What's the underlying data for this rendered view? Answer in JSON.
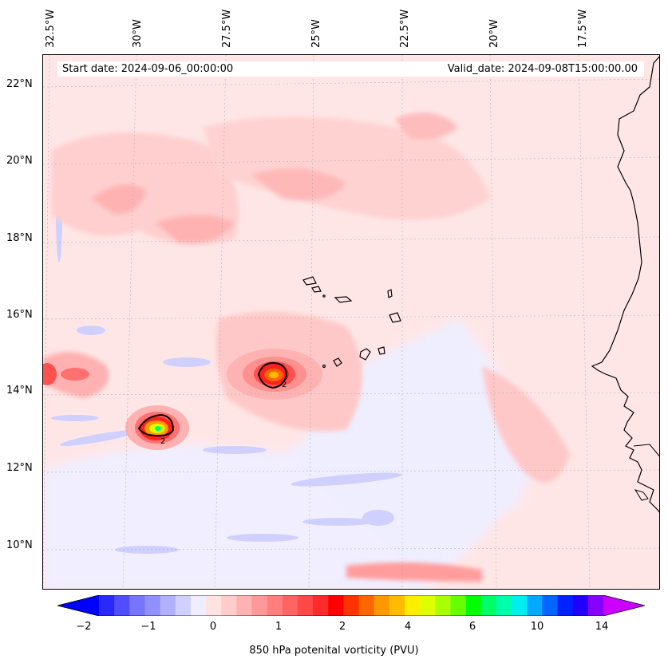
{
  "header": {
    "start_date": "Start date: 2024-09-06_00:00:00",
    "valid_date": "Valid_date: 2024-09-08T15:00:00.00"
  },
  "axes": {
    "longitude_labels": [
      "32.5°W",
      "30°W",
      "27.5°W",
      "25°W",
      "22.5°W",
      "20°W",
      "17.5°W"
    ],
    "latitude_labels": [
      "22°N",
      "20°N",
      "18°N",
      "16°N",
      "14°N",
      "12°N",
      "10°N"
    ]
  },
  "map_features": {
    "contour_label": "2",
    "contour_label_b": "2"
  },
  "colorbar": {
    "title": "850 hPa potenital vorticity (PVU)",
    "tick_labels": [
      "−2",
      "−1",
      "0",
      "1",
      "2",
      "4",
      "6",
      "10",
      "14"
    ],
    "colors": [
      "#0000ff",
      "#2929ff",
      "#4f4fff",
      "#7575ff",
      "#9090ff",
      "#b0b0ff",
      "#d0d0ff",
      "#eeeeff",
      "#ffe3e3",
      "#ffcccc",
      "#ffb2b2",
      "#ff9898",
      "#ff7f7f",
      "#ff6464",
      "#ff4848",
      "#ff2a2a",
      "#ff0000",
      "#ff3300",
      "#ff6600",
      "#ff9900",
      "#ffbb00",
      "#ffee00",
      "#ddff00",
      "#aaff00",
      "#66ff00",
      "#00ff00",
      "#00ff66",
      "#00ffaa",
      "#00eeee",
      "#00aaff",
      "#0066ff",
      "#0022ff",
      "#2200ff",
      "#8800ff",
      "#cc00ff"
    ]
  }
}
